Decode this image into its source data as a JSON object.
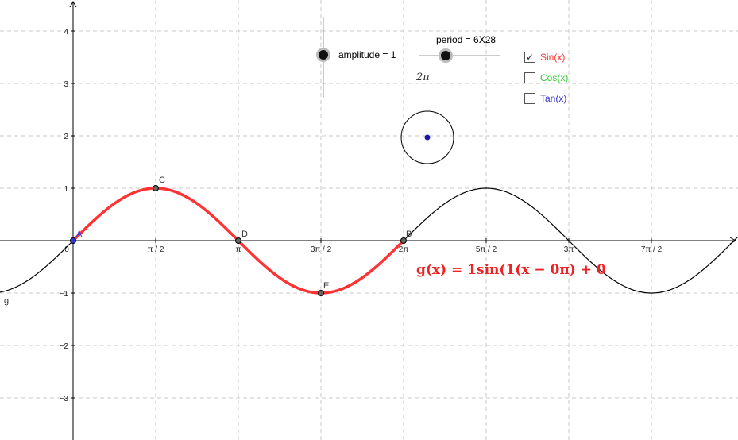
{
  "graph": {
    "y_ticks": [
      "4",
      "3",
      "2",
      "1",
      "−1",
      "−2",
      "−3"
    ],
    "x_ticks": [
      "0",
      "π / 2",
      "π",
      "3π / 2",
      "2π",
      "5π / 2",
      "3π",
      "7π / 2"
    ],
    "points": {
      "A": "A",
      "B": "B",
      "C": "C",
      "D": "D",
      "E": "E"
    },
    "function_name": "g",
    "colors": {
      "highlight_curve": "#ff3333",
      "base_curve": "#000000",
      "circle_point": "#1a1aa6",
      "axis_point_A": "#3333dd"
    }
  },
  "sliders": {
    "amplitude": {
      "label": "amplitude = 1",
      "value": 1
    },
    "period": {
      "label": "period = 6X28"
    }
  },
  "two_pi_label": "2π",
  "checkboxes": [
    {
      "label": "Sin(x)",
      "checked": true,
      "color": "#ff3333"
    },
    {
      "label": "Cos(x)",
      "checked": false,
      "color": "#33cc33"
    },
    {
      "label": "Tan(x)",
      "checked": false,
      "color": "#3333cc"
    }
  ],
  "formula": {
    "text": "g(x) = 1sin(1(x − 0π) + 0",
    "color": "#ee2222"
  }
}
